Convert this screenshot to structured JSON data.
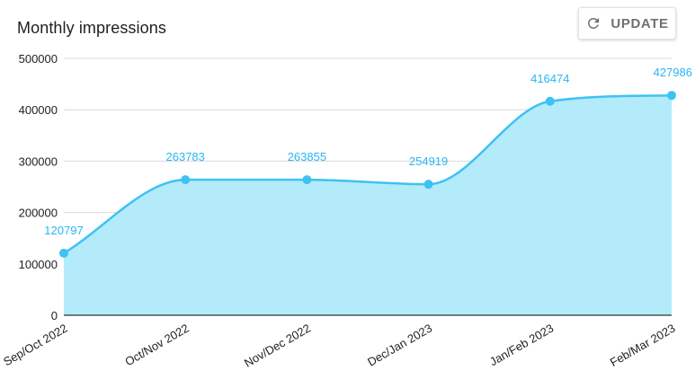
{
  "header": {
    "title": "Monthly impressions",
    "update_label": "UPDATE",
    "update_icon": "refresh-icon"
  },
  "colors": {
    "line": "#3ec2f2",
    "fill": "#b3ebfb",
    "label": "#29b6f6",
    "grid": "#d9d9d9",
    "axis": "#333333"
  },
  "chart_data": {
    "type": "area",
    "title": "Monthly impressions",
    "xlabel": "",
    "ylabel": "",
    "categories": [
      "Sep/Oct 2022",
      "Oct/Nov 2022",
      "Nov/Dec 2022",
      "Dec/Jan 2023",
      "Jan/Feb 2023",
      "Feb/Mar 2023"
    ],
    "values": [
      120797,
      263783,
      263855,
      254919,
      416474,
      427986
    ],
    "ylim": [
      0,
      500000
    ],
    "yticks": [
      0,
      100000,
      200000,
      300000,
      400000,
      500000
    ],
    "grid": true,
    "legend": "none",
    "smooth": true,
    "data_labels": true
  }
}
